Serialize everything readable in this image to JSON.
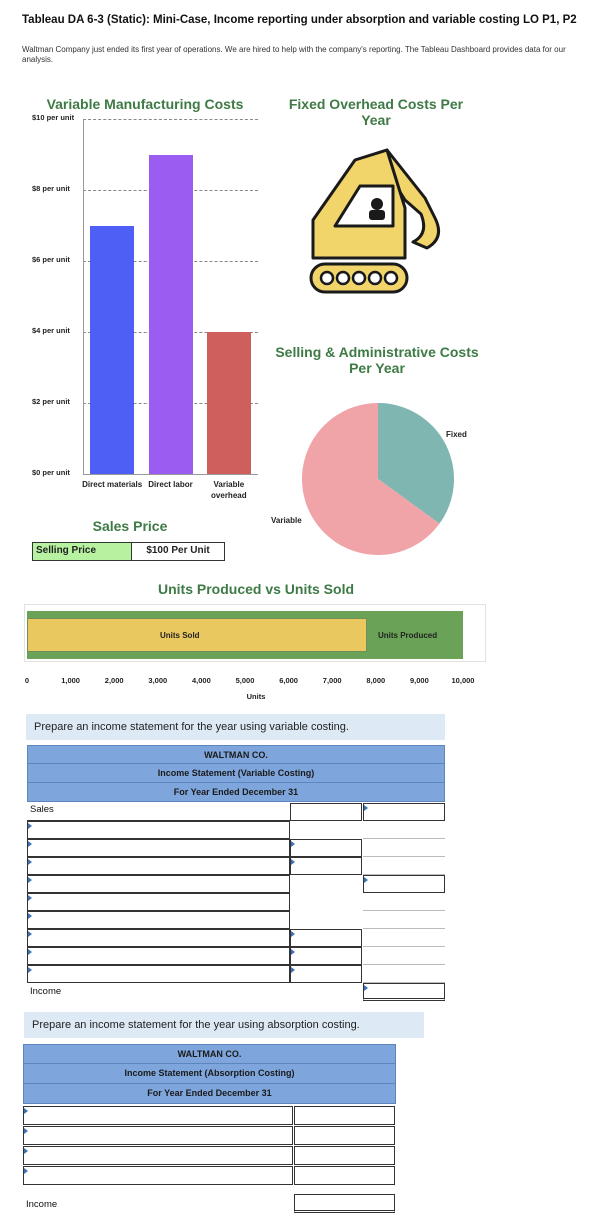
{
  "header": {
    "title": "Tableau DA 6-3 (Static): Mini-Case, Income reporting under absorption and variable costing LO P1, P2",
    "intro": "Waltman Company just ended its first year of operations. We are hired to help with the company's reporting. The Tableau Dashboard provides data for our analysis."
  },
  "vmc": {
    "title": "Variable Manufacturing Costs",
    "yticks": [
      "$10 per unit",
      "$8 per unit",
      "$6 per unit",
      "$4 per unit",
      "$2 per unit",
      "$0 per unit"
    ]
  },
  "fixed_overhead": {
    "title": "Fixed Overhead Costs Per Year",
    "icon": "excavator-icon"
  },
  "sga": {
    "title": "Selling & Administrative Costs Per Year"
  },
  "sales_price": {
    "title": "Sales Price",
    "label": "Selling Price",
    "value": "$100 Per Unit"
  },
  "units": {
    "title": "Units Produced vs Units Sold",
    "xlabel": "Units"
  },
  "chart_data": [
    {
      "type": "bar",
      "title": "Variable Manufacturing Costs",
      "categories": [
        "Direct materials",
        "Direct labor",
        "Variable overhead"
      ],
      "values": [
        7,
        9,
        4
      ],
      "ylim": [
        0,
        10
      ],
      "colors": [
        "#4e5ff5",
        "#9b5cf2",
        "#cf5f5c"
      ],
      "grid": true
    },
    {
      "type": "pie",
      "title": "Selling & Administrative Costs Per Year",
      "categories": [
        "Fixed",
        "Variable"
      ],
      "values": [
        35,
        65
      ],
      "colors": [
        "#80b6b1",
        "#f0a4a8"
      ]
    },
    {
      "type": "bar",
      "title": "Units Produced vs Units Sold",
      "orientation": "horizontal",
      "series": [
        {
          "name": "Units Produced",
          "values": [
            10000
          ]
        },
        {
          "name": "Units Sold",
          "values": [
            7800
          ]
        }
      ],
      "colors": [
        "#6aa357",
        "#e9c860"
      ],
      "xlabel": "Units",
      "xticks": [
        "0",
        "1,000",
        "2,000",
        "3,000",
        "4,000",
        "5,000",
        "6,000",
        "7,000",
        "8,000",
        "9,000",
        "10,000"
      ],
      "xlim": [
        0,
        10000
      ]
    }
  ],
  "variable_stmt": {
    "instruction": "Prepare an income statement for the year using variable costing.",
    "company": "WALTMAN CO.",
    "statement": "Income Statement (Variable Costing)",
    "period": "For Year Ended December 31",
    "first_row": "Sales",
    "last_row": "Income"
  },
  "absorption_stmt": {
    "instruction": "Prepare an income statement for the year using absorption costing.",
    "company": "WALTMAN CO.",
    "statement": "Income Statement (Absorption Costing)",
    "period": "For Year Ended December 31",
    "last_row": "Income"
  }
}
